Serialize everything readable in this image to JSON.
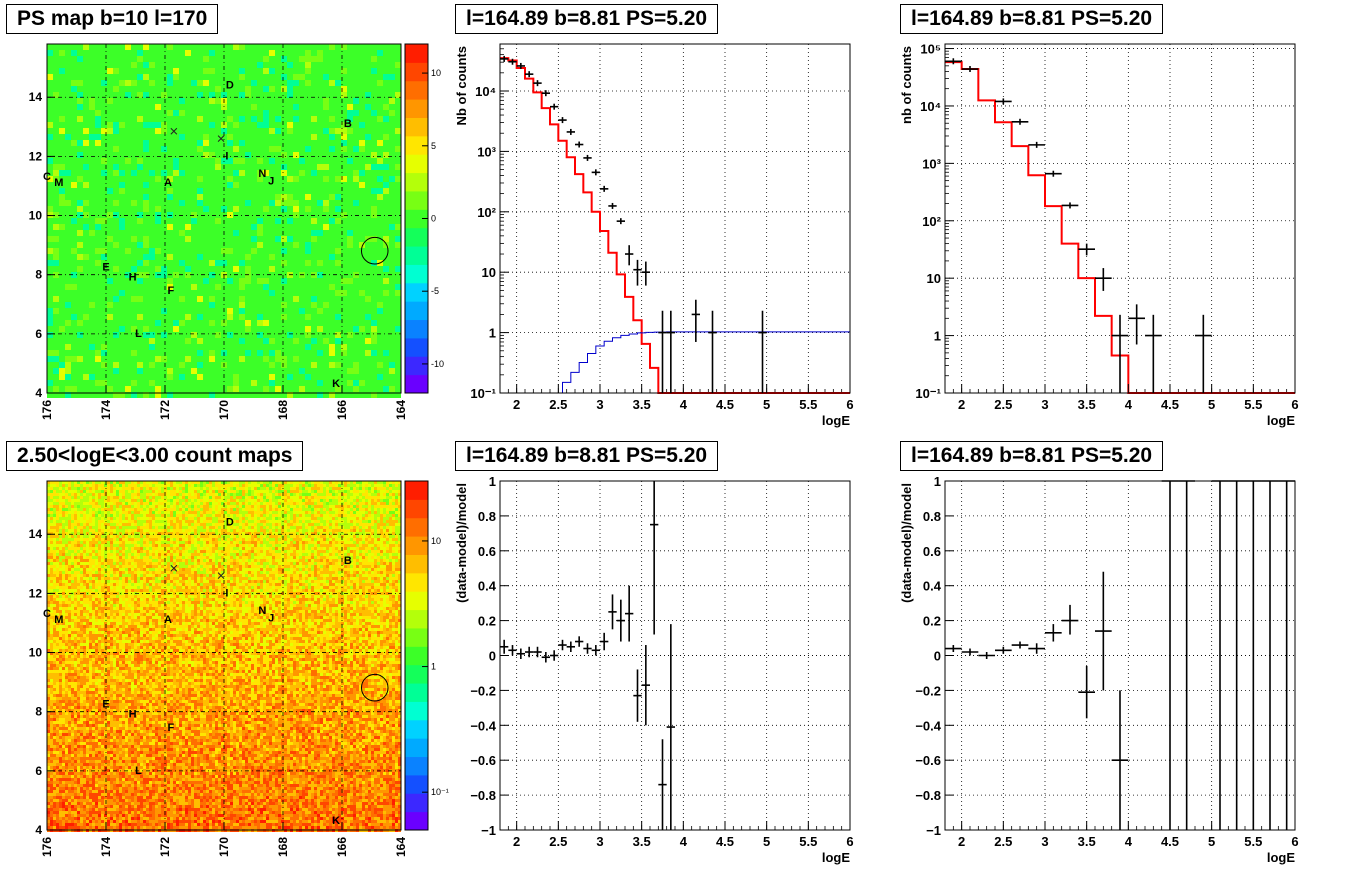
{
  "palette": {
    "signed": [
      "#6a00ff",
      "#3c28ff",
      "#1450ff",
      "#0a82ff",
      "#00aaff",
      "#00d2ff",
      "#00ffd2",
      "#00ff96",
      "#14ff5a",
      "#3cff28",
      "#78ff14",
      "#b4ff0a",
      "#e6ff00",
      "#ffe600",
      "#ffbe00",
      "#ff9600",
      "#ff6e00",
      "#ff4600",
      "#ff1e00"
    ],
    "log": [
      "#6a00ff",
      "#3c28ff",
      "#1450ff",
      "#0a82ff",
      "#00aaff",
      "#00d2ff",
      "#00ffd2",
      "#00ff96",
      "#14ff5a",
      "#3cff28",
      "#78ff14",
      "#b4ff0a",
      "#e6ff00",
      "#ffe600",
      "#ffbe00",
      "#ff9600",
      "#ff6e00",
      "#ff4600",
      "#ff1e00"
    ]
  },
  "maps": [
    {
      "title": "PS map b=10 l=170",
      "type": "heatmap",
      "xlim": [
        176,
        164
      ],
      "ylim": [
        4,
        15.8
      ],
      "xticks": [
        "176",
        "174",
        "172",
        "170",
        "168",
        "166",
        "164"
      ],
      "yticks": [
        "6",
        "8",
        "10",
        "12",
        "14"
      ],
      "colorbar_labels": [
        "10",
        "5",
        "0",
        "-5",
        "-10"
      ],
      "colorbar_values": [
        10,
        5,
        0,
        -5,
        -10
      ],
      "colorbar_range": [
        -12,
        12
      ],
      "colorbar_log": false,
      "base_color": "#37e550",
      "sources": [
        {
          "label": "D",
          "l": 169.8,
          "b": 14.3
        },
        {
          "label": "B",
          "l": 165.8,
          "b": 13.0
        },
        {
          "label": "I",
          "l": 169.9,
          "b": 11.9
        },
        {
          "label": "N",
          "l": 168.7,
          "b": 11.3
        },
        {
          "label": "J",
          "l": 168.4,
          "b": 11.05
        },
        {
          "label": "A",
          "l": 171.9,
          "b": 11.0
        },
        {
          "label": "C",
          "l": 176.0,
          "b": 11.2
        },
        {
          "label": "M",
          "l": 175.6,
          "b": 11.0
        },
        {
          "label": "E",
          "l": 174.0,
          "b": 8.15
        },
        {
          "label": "H",
          "l": 173.1,
          "b": 7.8
        },
        {
          "label": "F",
          "l": 171.8,
          "b": 7.35
        },
        {
          "label": "L",
          "l": 172.9,
          "b": 5.9
        },
        {
          "label": "K",
          "l": 166.2,
          "b": 4.2
        }
      ],
      "crosses": [
        {
          "l": 171.7,
          "b": 12.85
        },
        {
          "l": 170.1,
          "b": 12.6
        }
      ],
      "circle": {
        "l": 164.89,
        "b": 8.81,
        "r": 0.45
      }
    },
    {
      "title": "2.50<logE<3.00 count maps",
      "type": "heatmap",
      "xlim": [
        176,
        164
      ],
      "ylim": [
        4,
        15.8
      ],
      "xticks": [
        "176",
        "174",
        "172",
        "170",
        "168",
        "166",
        "164"
      ],
      "yticks": [
        "6",
        "8",
        "10",
        "12",
        "14"
      ],
      "colorbar_labels": [
        "10",
        "1",
        "10⁻¹"
      ],
      "colorbar_values": [
        10,
        1,
        0.1
      ],
      "colorbar_range": [
        0.05,
        30
      ],
      "colorbar_log": true,
      "base_color": "#ff8a14",
      "sources": [
        {
          "label": "D",
          "l": 169.8,
          "b": 14.3
        },
        {
          "label": "B",
          "l": 165.8,
          "b": 13.0
        },
        {
          "label": "I",
          "l": 169.9,
          "b": 11.9
        },
        {
          "label": "N",
          "l": 168.7,
          "b": 11.3
        },
        {
          "label": "J",
          "l": 168.4,
          "b": 11.05
        },
        {
          "label": "A",
          "l": 171.9,
          "b": 11.0
        },
        {
          "label": "C",
          "l": 176.0,
          "b": 11.2
        },
        {
          "label": "M",
          "l": 175.6,
          "b": 11.0
        },
        {
          "label": "E",
          "l": 174.0,
          "b": 8.15
        },
        {
          "label": "H",
          "l": 173.1,
          "b": 7.8
        },
        {
          "label": "F",
          "l": 171.8,
          "b": 7.35
        },
        {
          "label": "L",
          "l": 172.9,
          "b": 5.9
        },
        {
          "label": "K",
          "l": 166.2,
          "b": 4.2
        }
      ],
      "crosses": [
        {
          "l": 171.7,
          "b": 12.85
        },
        {
          "l": 170.1,
          "b": 12.6
        }
      ],
      "circle": {
        "l": 164.89,
        "b": 8.81,
        "r": 0.45
      }
    }
  ],
  "chart_data": [
    {
      "type": "line",
      "title": "l=164.89 b=8.81 PS=5.20",
      "xlabel": "logE",
      "ylabel": "Nb of counts",
      "log_y": true,
      "xlim": [
        1.8,
        6
      ],
      "ylim": [
        0.1,
        60000
      ],
      "grid": true,
      "xticks": [
        "2",
        "2.5",
        "3",
        "3.5",
        "4",
        "4.5",
        "5",
        "5.5",
        "6"
      ],
      "yticks": [
        {
          "v": 0.1,
          "label": "10⁻¹"
        },
        {
          "v": 1,
          "label": "1"
        },
        {
          "v": 10,
          "label": "10"
        },
        {
          "v": 100,
          "label": "10²"
        },
        {
          "v": 1000,
          "label": "10³"
        },
        {
          "v": 10000,
          "label": "10⁴"
        }
      ],
      "bin_width": 0.1,
      "model_hist": [
        35000,
        32000,
        24000,
        16000,
        9500,
        5200,
        2800,
        1500,
        800,
        420,
        210,
        100,
        48,
        21,
        9.2,
        3.9,
        1.6,
        0.65,
        0.26,
        0.1
      ],
      "model_color": "#ff0000",
      "points": [
        {
          "x": 1.85,
          "y": 34000,
          "lo": null,
          "hi": null
        },
        {
          "x": 1.95,
          "y": 30500,
          "lo": null,
          "hi": null
        },
        {
          "x": 2.05,
          "y": 26000,
          "lo": null,
          "hi": null
        },
        {
          "x": 2.15,
          "y": 19000,
          "lo": null,
          "hi": null
        },
        {
          "x": 2.25,
          "y": 13500,
          "lo": null,
          "hi": null
        },
        {
          "x": 2.35,
          "y": 9200,
          "lo": null,
          "hi": null
        },
        {
          "x": 2.45,
          "y": 5500,
          "lo": null,
          "hi": null
        },
        {
          "x": 2.55,
          "y": 3300,
          "lo": null,
          "hi": null
        },
        {
          "x": 2.65,
          "y": 2100,
          "lo": null,
          "hi": null
        },
        {
          "x": 2.75,
          "y": 1300,
          "lo": null,
          "hi": null
        },
        {
          "x": 2.85,
          "y": 780,
          "lo": null,
          "hi": null
        },
        {
          "x": 2.95,
          "y": 450,
          "lo": null,
          "hi": null
        },
        {
          "x": 3.05,
          "y": 240,
          "lo": null,
          "hi": null
        },
        {
          "x": 3.15,
          "y": 125,
          "lo": null,
          "hi": null
        },
        {
          "x": 3.25,
          "y": 70,
          "lo": null,
          "hi": null
        },
        {
          "x": 3.35,
          "y": 20,
          "lo": 13,
          "hi": 28
        },
        {
          "x": 3.45,
          "y": 11,
          "lo": 6,
          "hi": 16
        },
        {
          "x": 3.55,
          "y": 10,
          "lo": 6,
          "hi": 15
        },
        {
          "x": 3.75,
          "y": 1,
          "lo": 0.1,
          "hi": 2.3
        },
        {
          "x": 3.85,
          "y": 1,
          "lo": 0.1,
          "hi": 2.3
        },
        {
          "x": 4.15,
          "y": 2,
          "lo": 0.7,
          "hi": 3.5
        },
        {
          "x": 4.35,
          "y": 1,
          "lo": 0.1,
          "hi": 2.3
        },
        {
          "x": 4.95,
          "y": 1,
          "lo": 0.1,
          "hi": 2.3
        }
      ],
      "extra_line": {
        "color": "#0000cc",
        "x": [
          2.45,
          2.55,
          2.65,
          2.75,
          2.85,
          2.95,
          3.05,
          3.15,
          3.25,
          3.35,
          3.45,
          3.55,
          3.65,
          3.8,
          4.0,
          6.0
        ],
        "y": [
          0.1,
          0.15,
          0.22,
          0.32,
          0.45,
          0.6,
          0.72,
          0.82,
          0.9,
          0.95,
          0.99,
          1.01,
          1.02,
          1.03,
          1.03,
          1.03
        ]
      }
    },
    {
      "type": "line",
      "title": "l=164.89 b=8.81 PS=5.20",
      "xlabel": "logE",
      "ylabel": "nb of counts",
      "log_y": true,
      "xlim": [
        1.8,
        6
      ],
      "ylim": [
        0.1,
        120000
      ],
      "grid": true,
      "xticks": [
        "2",
        "2.5",
        "3",
        "3.5",
        "4",
        "4.5",
        "5",
        "5.5",
        "6"
      ],
      "yticks": [
        {
          "v": 0.1,
          "label": "10⁻¹"
        },
        {
          "v": 1,
          "label": "1"
        },
        {
          "v": 10,
          "label": "10"
        },
        {
          "v": 100,
          "label": "10²"
        },
        {
          "v": 1000,
          "label": "10³"
        },
        {
          "v": 10000,
          "label": "10⁴"
        },
        {
          "v": 100000,
          "label": "10⁵"
        }
      ],
      "bin_width": 0.2,
      "model_hist": [
        58000,
        44000,
        12500,
        5200,
        2000,
        620,
        180,
        40,
        10,
        2.2,
        0.45,
        0.1,
        0.1,
        0.1,
        0.1,
        0.1,
        0.1,
        0.1,
        0.1,
        0.1,
        0.1
      ],
      "model_color": "#ff0000",
      "points": [
        {
          "x": 1.9,
          "y": 60000,
          "lo": null,
          "hi": null
        },
        {
          "x": 2.1,
          "y": 44000,
          "lo": null,
          "hi": null
        },
        {
          "x": 2.5,
          "y": 12000,
          "lo": null,
          "hi": null
        },
        {
          "x": 2.7,
          "y": 5300,
          "lo": null,
          "hi": null
        },
        {
          "x": 2.9,
          "y": 2100,
          "lo": null,
          "hi": null
        },
        {
          "x": 3.1,
          "y": 660,
          "lo": null,
          "hi": null
        },
        {
          "x": 3.3,
          "y": 185,
          "lo": null,
          "hi": null
        },
        {
          "x": 3.5,
          "y": 32,
          "lo": 25,
          "hi": 40
        },
        {
          "x": 3.7,
          "y": 10,
          "lo": 6,
          "hi": 15
        },
        {
          "x": 3.9,
          "y": 1,
          "lo": 0.1,
          "hi": 2.3
        },
        {
          "x": 4.1,
          "y": 2,
          "lo": 0.7,
          "hi": 3.5
        },
        {
          "x": 4.3,
          "y": 1,
          "lo": 0.1,
          "hi": 2.3
        },
        {
          "x": 4.9,
          "y": 1,
          "lo": 0.1,
          "hi": 2.3
        }
      ]
    },
    {
      "type": "scatter",
      "title": "l=164.89 b=8.81 PS=5.20",
      "xlabel": "logE",
      "ylabel": "(data-model)/model",
      "log_y": false,
      "xlim": [
        1.8,
        6
      ],
      "ylim": [
        -1,
        1
      ],
      "grid": true,
      "xticks": [
        "2",
        "2.5",
        "3",
        "3.5",
        "4",
        "4.5",
        "5",
        "5.5",
        "6"
      ],
      "yticks": [
        {
          "v": -1,
          "label": "−1"
        },
        {
          "v": -0.8,
          "label": "−0.8"
        },
        {
          "v": -0.6,
          "label": "−0.6"
        },
        {
          "v": -0.4,
          "label": "−0.4"
        },
        {
          "v": -0.2,
          "label": "−0.2"
        },
        {
          "v": 0,
          "label": "0"
        },
        {
          "v": 0.2,
          "label": "0.2"
        },
        {
          "v": 0.4,
          "label": "0.4"
        },
        {
          "v": 0.6,
          "label": "0.6"
        },
        {
          "v": 0.8,
          "label": "0.8"
        },
        {
          "v": 1,
          "label": "1"
        }
      ],
      "bin_width": 0.1,
      "points": [
        {
          "x": 1.85,
          "y": 0.05,
          "lo": 0.01,
          "hi": 0.09
        },
        {
          "x": 1.95,
          "y": 0.03,
          "lo": 0.0,
          "hi": 0.06
        },
        {
          "x": 2.05,
          "y": 0.01,
          "lo": -0.02,
          "hi": 0.04
        },
        {
          "x": 2.15,
          "y": 0.02,
          "lo": -0.01,
          "hi": 0.05
        },
        {
          "x": 2.25,
          "y": 0.02,
          "lo": -0.01,
          "hi": 0.05
        },
        {
          "x": 2.35,
          "y": -0.01,
          "lo": -0.04,
          "hi": 0.02
        },
        {
          "x": 2.45,
          "y": 0.0,
          "lo": -0.03,
          "hi": 0.03
        },
        {
          "x": 2.55,
          "y": 0.06,
          "lo": 0.03,
          "hi": 0.09
        },
        {
          "x": 2.65,
          "y": 0.05,
          "lo": 0.02,
          "hi": 0.08
        },
        {
          "x": 2.75,
          "y": 0.08,
          "lo": 0.05,
          "hi": 0.11
        },
        {
          "x": 2.85,
          "y": 0.04,
          "lo": 0.01,
          "hi": 0.07
        },
        {
          "x": 2.95,
          "y": 0.03,
          "lo": 0.0,
          "hi": 0.06
        },
        {
          "x": 3.05,
          "y": 0.08,
          "lo": 0.03,
          "hi": 0.13
        },
        {
          "x": 3.15,
          "y": 0.25,
          "lo": 0.15,
          "hi": 0.35
        },
        {
          "x": 3.25,
          "y": 0.2,
          "lo": 0.08,
          "hi": 0.32
        },
        {
          "x": 3.35,
          "y": 0.24,
          "lo": 0.08,
          "hi": 0.4
        },
        {
          "x": 3.45,
          "y": -0.23,
          "lo": -0.38,
          "hi": -0.08
        },
        {
          "x": 3.55,
          "y": -0.17,
          "lo": -0.4,
          "hi": 0.06
        },
        {
          "x": 3.65,
          "y": 0.75,
          "lo": 0.12,
          "hi": 1.0
        },
        {
          "x": 3.75,
          "y": -0.74,
          "lo": -1.0,
          "hi": -0.48
        },
        {
          "x": 3.85,
          "y": -0.41,
          "lo": -1.0,
          "hi": 0.18
        }
      ]
    },
    {
      "type": "scatter",
      "title": "l=164.89 b=8.81 PS=5.20",
      "xlabel": "logE",
      "ylabel": "(data-model)/model",
      "log_y": false,
      "xlim": [
        1.8,
        6
      ],
      "ylim": [
        -1,
        1
      ],
      "grid": true,
      "xticks": [
        "2",
        "2.5",
        "3",
        "3.5",
        "4",
        "4.5",
        "5",
        "5.5",
        "6"
      ],
      "yticks": [
        {
          "v": -1,
          "label": "−1"
        },
        {
          "v": -0.8,
          "label": "−0.8"
        },
        {
          "v": -0.6,
          "label": "−0.6"
        },
        {
          "v": -0.4,
          "label": "−0.4"
        },
        {
          "v": -0.2,
          "label": "−0.2"
        },
        {
          "v": 0,
          "label": "0"
        },
        {
          "v": 0.2,
          "label": "0.2"
        },
        {
          "v": 0.4,
          "label": "0.4"
        },
        {
          "v": 0.6,
          "label": "0.6"
        },
        {
          "v": 0.8,
          "label": "0.8"
        },
        {
          "v": 1,
          "label": "1"
        }
      ],
      "bin_width": 0.2,
      "points": [
        {
          "x": 1.9,
          "y": 0.04,
          "lo": 0.02,
          "hi": 0.06
        },
        {
          "x": 2.1,
          "y": 0.02,
          "lo": 0.0,
          "hi": 0.04
        },
        {
          "x": 2.3,
          "y": 0.0,
          "lo": -0.02,
          "hi": 0.02
        },
        {
          "x": 2.5,
          "y": 0.03,
          "lo": 0.01,
          "hi": 0.05
        },
        {
          "x": 2.7,
          "y": 0.06,
          "lo": 0.04,
          "hi": 0.08
        },
        {
          "x": 2.9,
          "y": 0.04,
          "lo": 0.01,
          "hi": 0.07
        },
        {
          "x": 3.1,
          "y": 0.13,
          "lo": 0.08,
          "hi": 0.18
        },
        {
          "x": 3.3,
          "y": 0.2,
          "lo": 0.12,
          "hi": 0.29
        },
        {
          "x": 3.5,
          "y": -0.21,
          "lo": -0.36,
          "hi": -0.06
        },
        {
          "x": 3.7,
          "y": 0.14,
          "lo": -0.2,
          "hi": 0.48
        },
        {
          "x": 3.9,
          "y": -0.6,
          "lo": -1.0,
          "hi": -0.2
        },
        {
          "x": 4.5,
          "y": 1.0,
          "lo": -1.0,
          "hi": 1.0
        },
        {
          "x": 4.7,
          "y": 1.0,
          "lo": -1.0,
          "hi": 1.0
        },
        {
          "x": 5.1,
          "y": 1.0,
          "lo": -1.0,
          "hi": 1.0
        },
        {
          "x": 5.3,
          "y": 1.0,
          "lo": -1.0,
          "hi": 1.0
        },
        {
          "x": 5.5,
          "y": 1.0,
          "lo": -1.0,
          "hi": 1.0
        },
        {
          "x": 5.7,
          "y": 1.0,
          "lo": -1.0,
          "hi": 1.0
        },
        {
          "x": 5.9,
          "y": 1.0,
          "lo": -1.0,
          "hi": 1.0
        }
      ]
    }
  ]
}
